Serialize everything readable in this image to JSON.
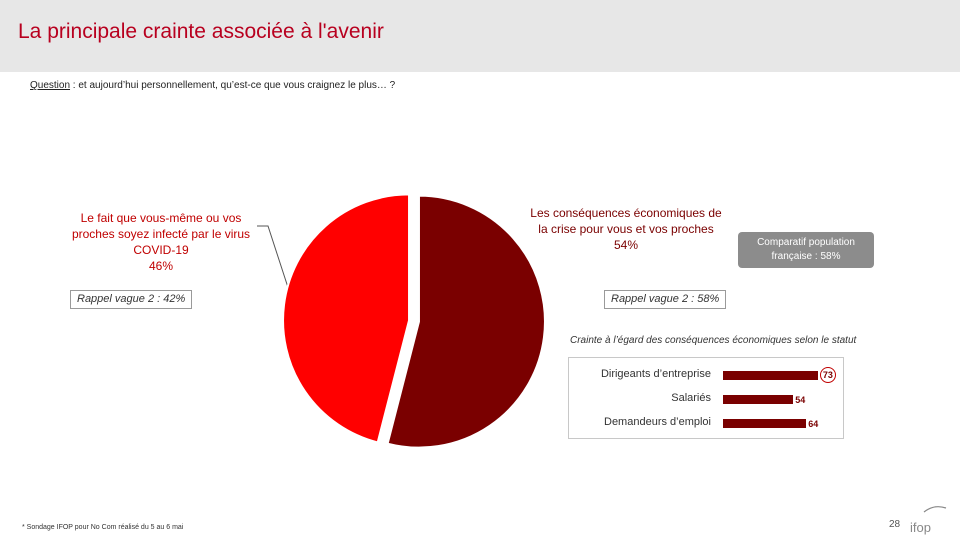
{
  "header": {
    "title": "La principale crainte associée à l'avenir"
  },
  "question": {
    "label": "Question",
    "text": " : et aujourd’hui personnellement, qu’est-ce que vous craignez le plus… ?"
  },
  "chart_data": [
    {
      "type": "pie",
      "slices": [
        {
          "label": "Les conséquences économiques de la crise pour vous et vos proches",
          "value": 54,
          "value_label": "54%",
          "color": "#7a0000",
          "rappel": "Rappel vague 2 : 58%"
        },
        {
          "label": "Le fait que vous-même ou vos proches soyez infecté par le virus COVID-19",
          "value": 46,
          "value_label": "46%",
          "color": "#ff0000",
          "rappel": "Rappel vague 2 : 42%"
        }
      ],
      "note": "Comparatif population française : 58%"
    },
    {
      "type": "bar",
      "title": "Crainte à l’égard des conséquences économiques selon le statut",
      "categories": [
        "Dirigeants d’entreprise",
        "Salariés",
        "Demandeurs d’emploi"
      ],
      "values": [
        73,
        54,
        64
      ],
      "color": "#7a0000"
    }
  ],
  "footer": {
    "footnote": "* Sondage IFOP pour No Com réalisé du 5 au 6 mai",
    "page": "28",
    "logo_text": "ifop"
  }
}
